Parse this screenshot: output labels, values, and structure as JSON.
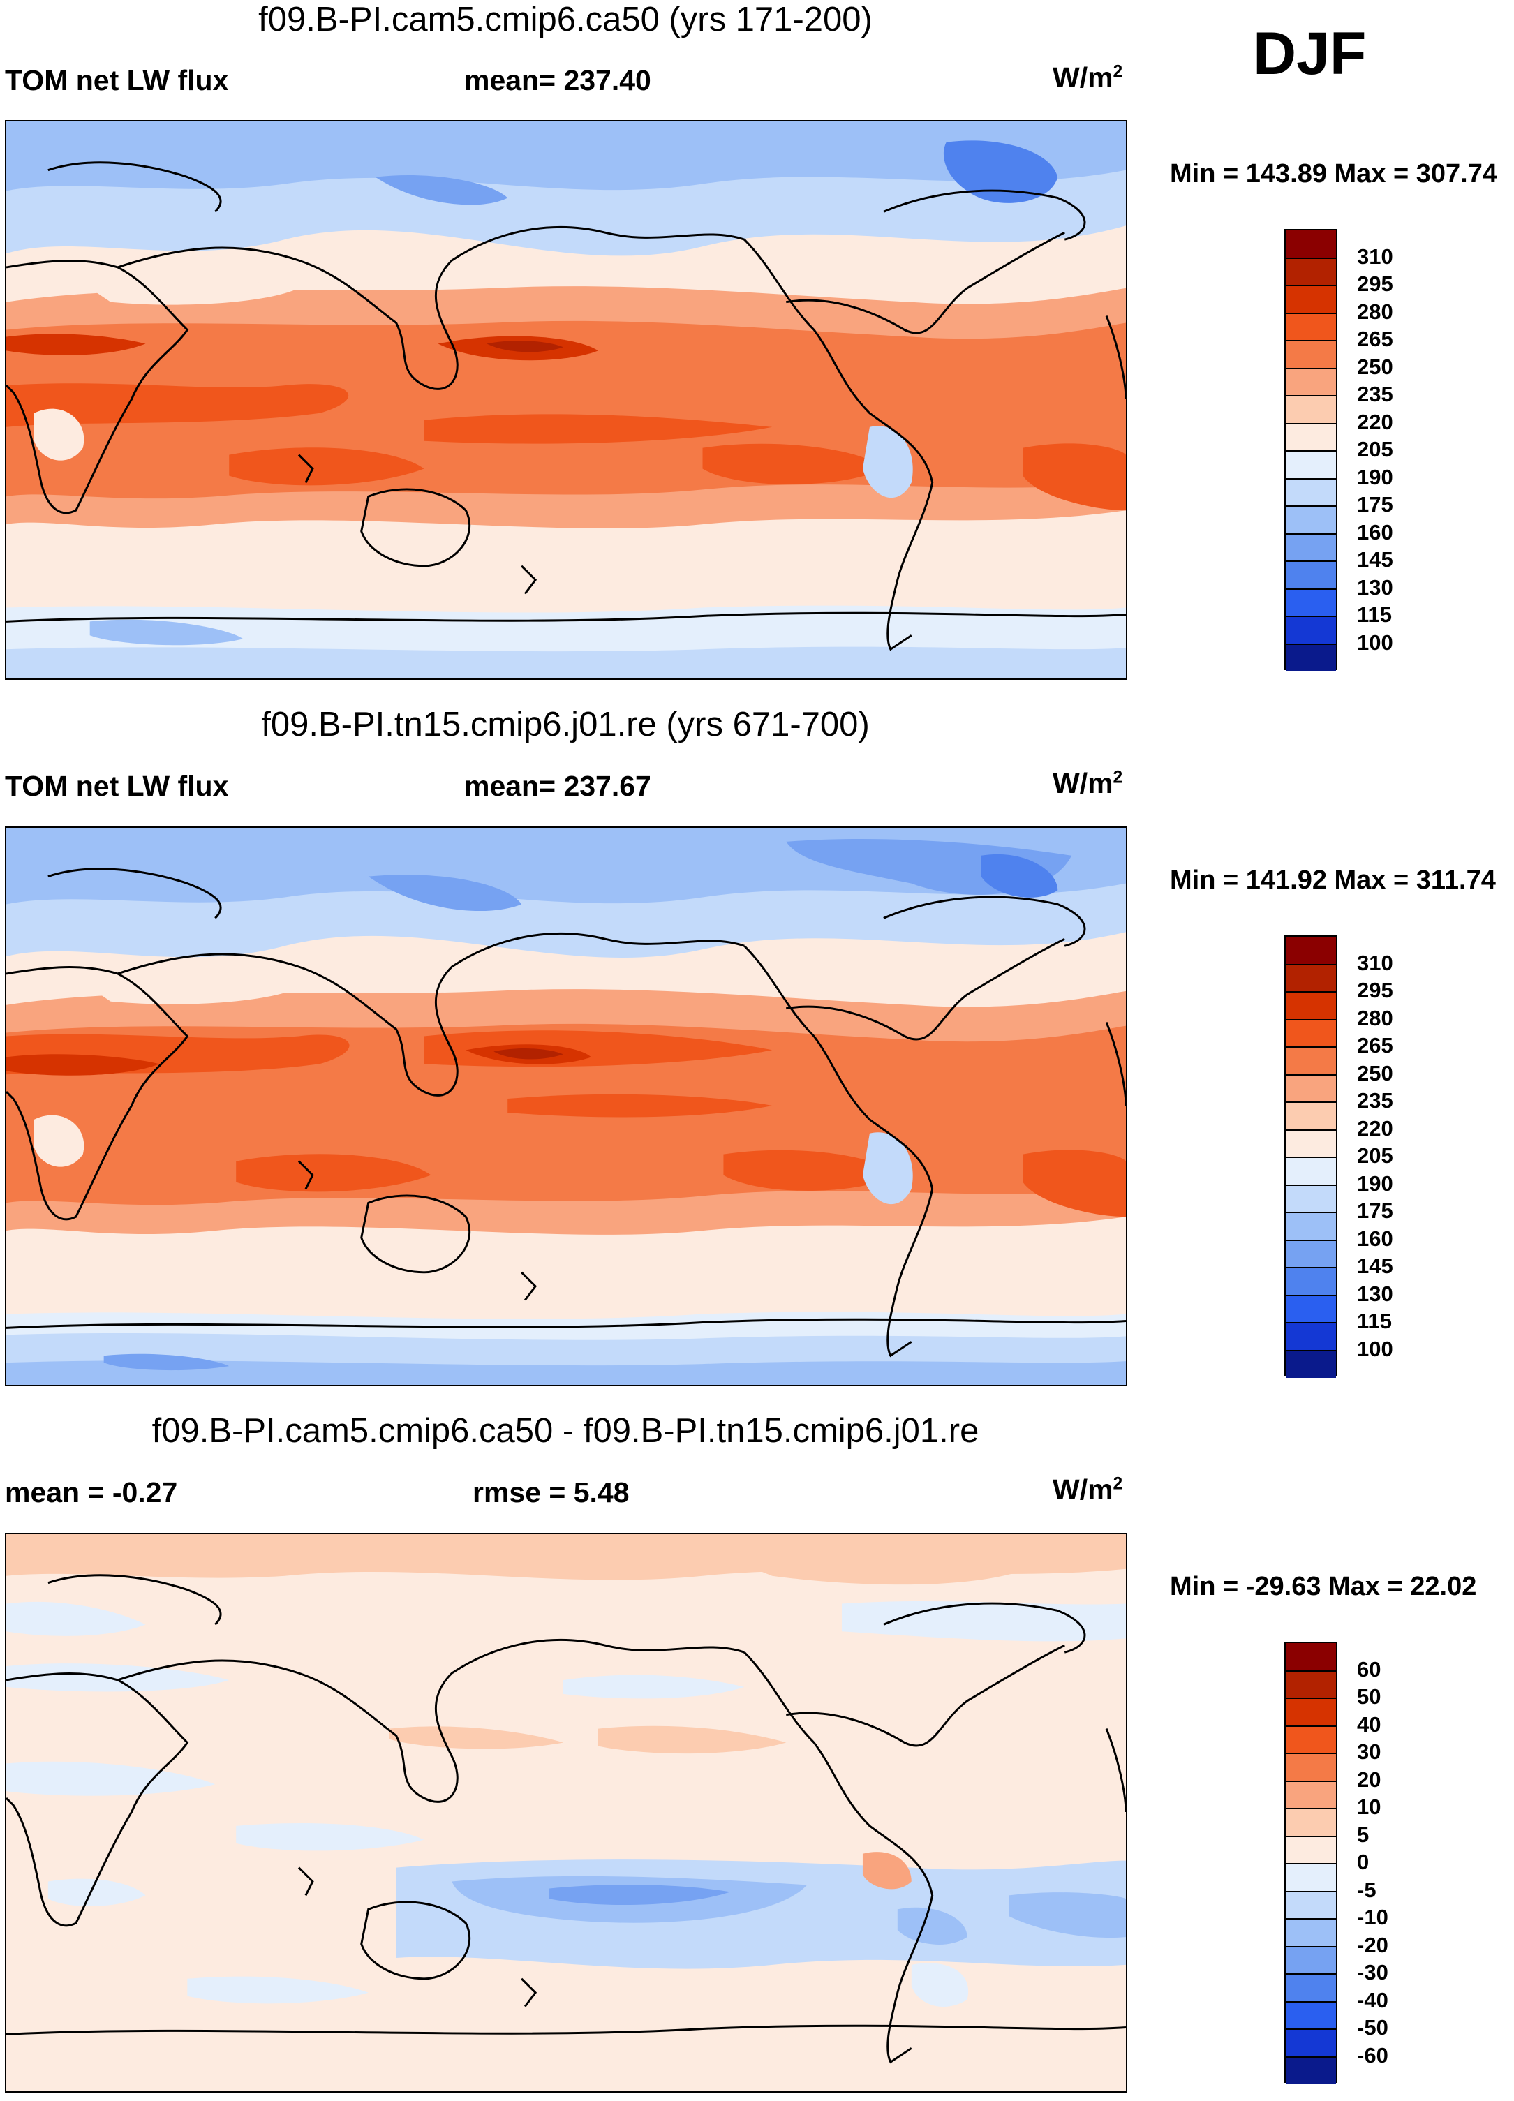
{
  "season": "DJF",
  "units_base": "W/m",
  "units_sup": "2",
  "panels": [
    {
      "title": "f09.B-PI.cam5.cmip6.ca50 (yrs 171-200)",
      "left_label": "TOM net LW flux",
      "center_label": "mean= 237.40",
      "minmax": "Min = 143.89 Max = 307.74",
      "colorbar_ticks": [
        "310",
        "295",
        "280",
        "265",
        "250",
        "235",
        "220",
        "205",
        "190",
        "175",
        "160",
        "145",
        "130",
        "115",
        "100"
      ]
    },
    {
      "title": "f09.B-PI.tn15.cmip6.j01.re (yrs 671-700)",
      "left_label": "TOM net LW flux",
      "center_label": "mean= 237.67",
      "minmax": "Min = 141.92 Max = 311.74",
      "colorbar_ticks": [
        "310",
        "295",
        "280",
        "265",
        "250",
        "235",
        "220",
        "205",
        "190",
        "175",
        "160",
        "145",
        "130",
        "115",
        "100"
      ]
    },
    {
      "title": "f09.B-PI.cam5.cmip6.ca50 - f09.B-PI.tn15.cmip6.j01.re",
      "left_label": "mean =  -0.27",
      "center_label": "rmse =   5.48",
      "minmax": "Min = -29.63 Max =  22.02",
      "colorbar_ticks": [
        "60",
        "50",
        "40",
        "30",
        "20",
        "10",
        "5",
        "0",
        "-5",
        "-10",
        "-20",
        "-30",
        "-40",
        "-50",
        "-60"
      ]
    }
  ],
  "colors": {
    "abs_scale": [
      "#8b0000",
      "#b22200",
      "#d63300",
      "#f0561c",
      "#f47a47",
      "#f9a47e",
      "#fcccb0",
      "#fdebe0",
      "#e4effc",
      "#c3dafa",
      "#9dc0f7",
      "#76a2f2",
      "#4f82ee",
      "#2a5ff0",
      "#1438d4",
      "#0a1a8c"
    ],
    "diff_scale": [
      "#8b0000",
      "#b22200",
      "#d63300",
      "#f0561c",
      "#f47a47",
      "#f9a47e",
      "#fcccb0",
      "#fdebe0",
      "#e4effc",
      "#c3dafa",
      "#9dc0f7",
      "#76a2f2",
      "#4f82ee",
      "#2a5ff0",
      "#1438d4",
      "#0a1a8c"
    ]
  }
}
